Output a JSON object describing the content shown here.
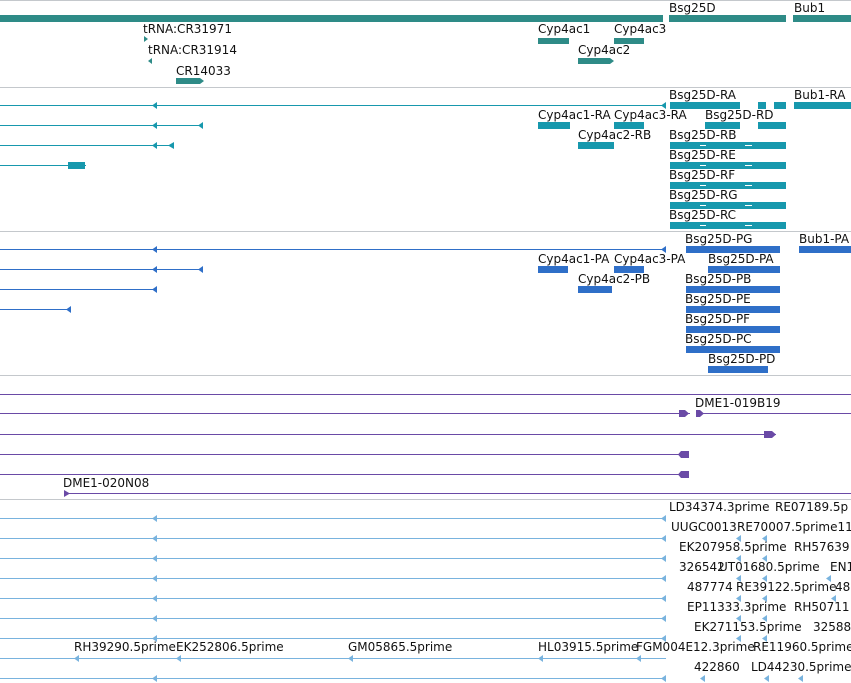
{
  "colors": {
    "gene": "#2e8b87",
    "transcript": "#1798ad",
    "protein": "#2f6fc8",
    "clone": "#6a4aa6",
    "est": "#79b3de",
    "separator": "#c4c8cc"
  },
  "tracks": {
    "genes": {
      "labels": [
        "Bsg25D",
        "Bub1",
        "tRNA:CR31971",
        "tRNA:CR31914",
        "CR14033",
        "Cyp4ac1",
        "Cyp4ac3",
        "Cyp4ac2"
      ]
    },
    "transcripts": {
      "labels": [
        "Bsg25D-RA",
        "Bub1-RA",
        "Cyp4ac1-RA",
        "Cyp4ac3-RA",
        "Bsg25D-RD",
        "Cyp4ac2-RB",
        "Bsg25D-RB",
        "Bsg25D-RE",
        "Bsg25D-RF",
        "Bsg25D-RG",
        "Bsg25D-RC"
      ]
    },
    "proteins": {
      "labels": [
        "Bsg25D-PG",
        "Bub1-PA",
        "Cyp4ac1-PA",
        "Cyp4ac3-PA",
        "Bsg25D-PA",
        "Cyp4ac2-PB",
        "Bsg25D-PB",
        "Bsg25D-PE",
        "Bsg25D-PF",
        "Bsg25D-PC",
        "Bsg25D-PD"
      ]
    },
    "clones": {
      "labels": [
        "DME1-019B19",
        "DME1-020N08"
      ]
    },
    "ests": {
      "labels": [
        "LD34374.3prime",
        "RE07189.5p",
        "UUGC0013",
        "RE70007.5prime11",
        "EK207958.5prime",
        "RH57639",
        "326542",
        "UT01680.5prime",
        "EN1",
        "487774",
        "RE39122.5prime",
        "48",
        "EP11333.3prime",
        "RH50711",
        "EK271153.5prime",
        "32588",
        "RH39290.5prime",
        "EK252806.5prime",
        "GM05865.5prime",
        "HL03915.5prime",
        "FGM004E12.3prime",
        "RE11960.5prime",
        "422860",
        "LD44230.5prime"
      ]
    }
  }
}
